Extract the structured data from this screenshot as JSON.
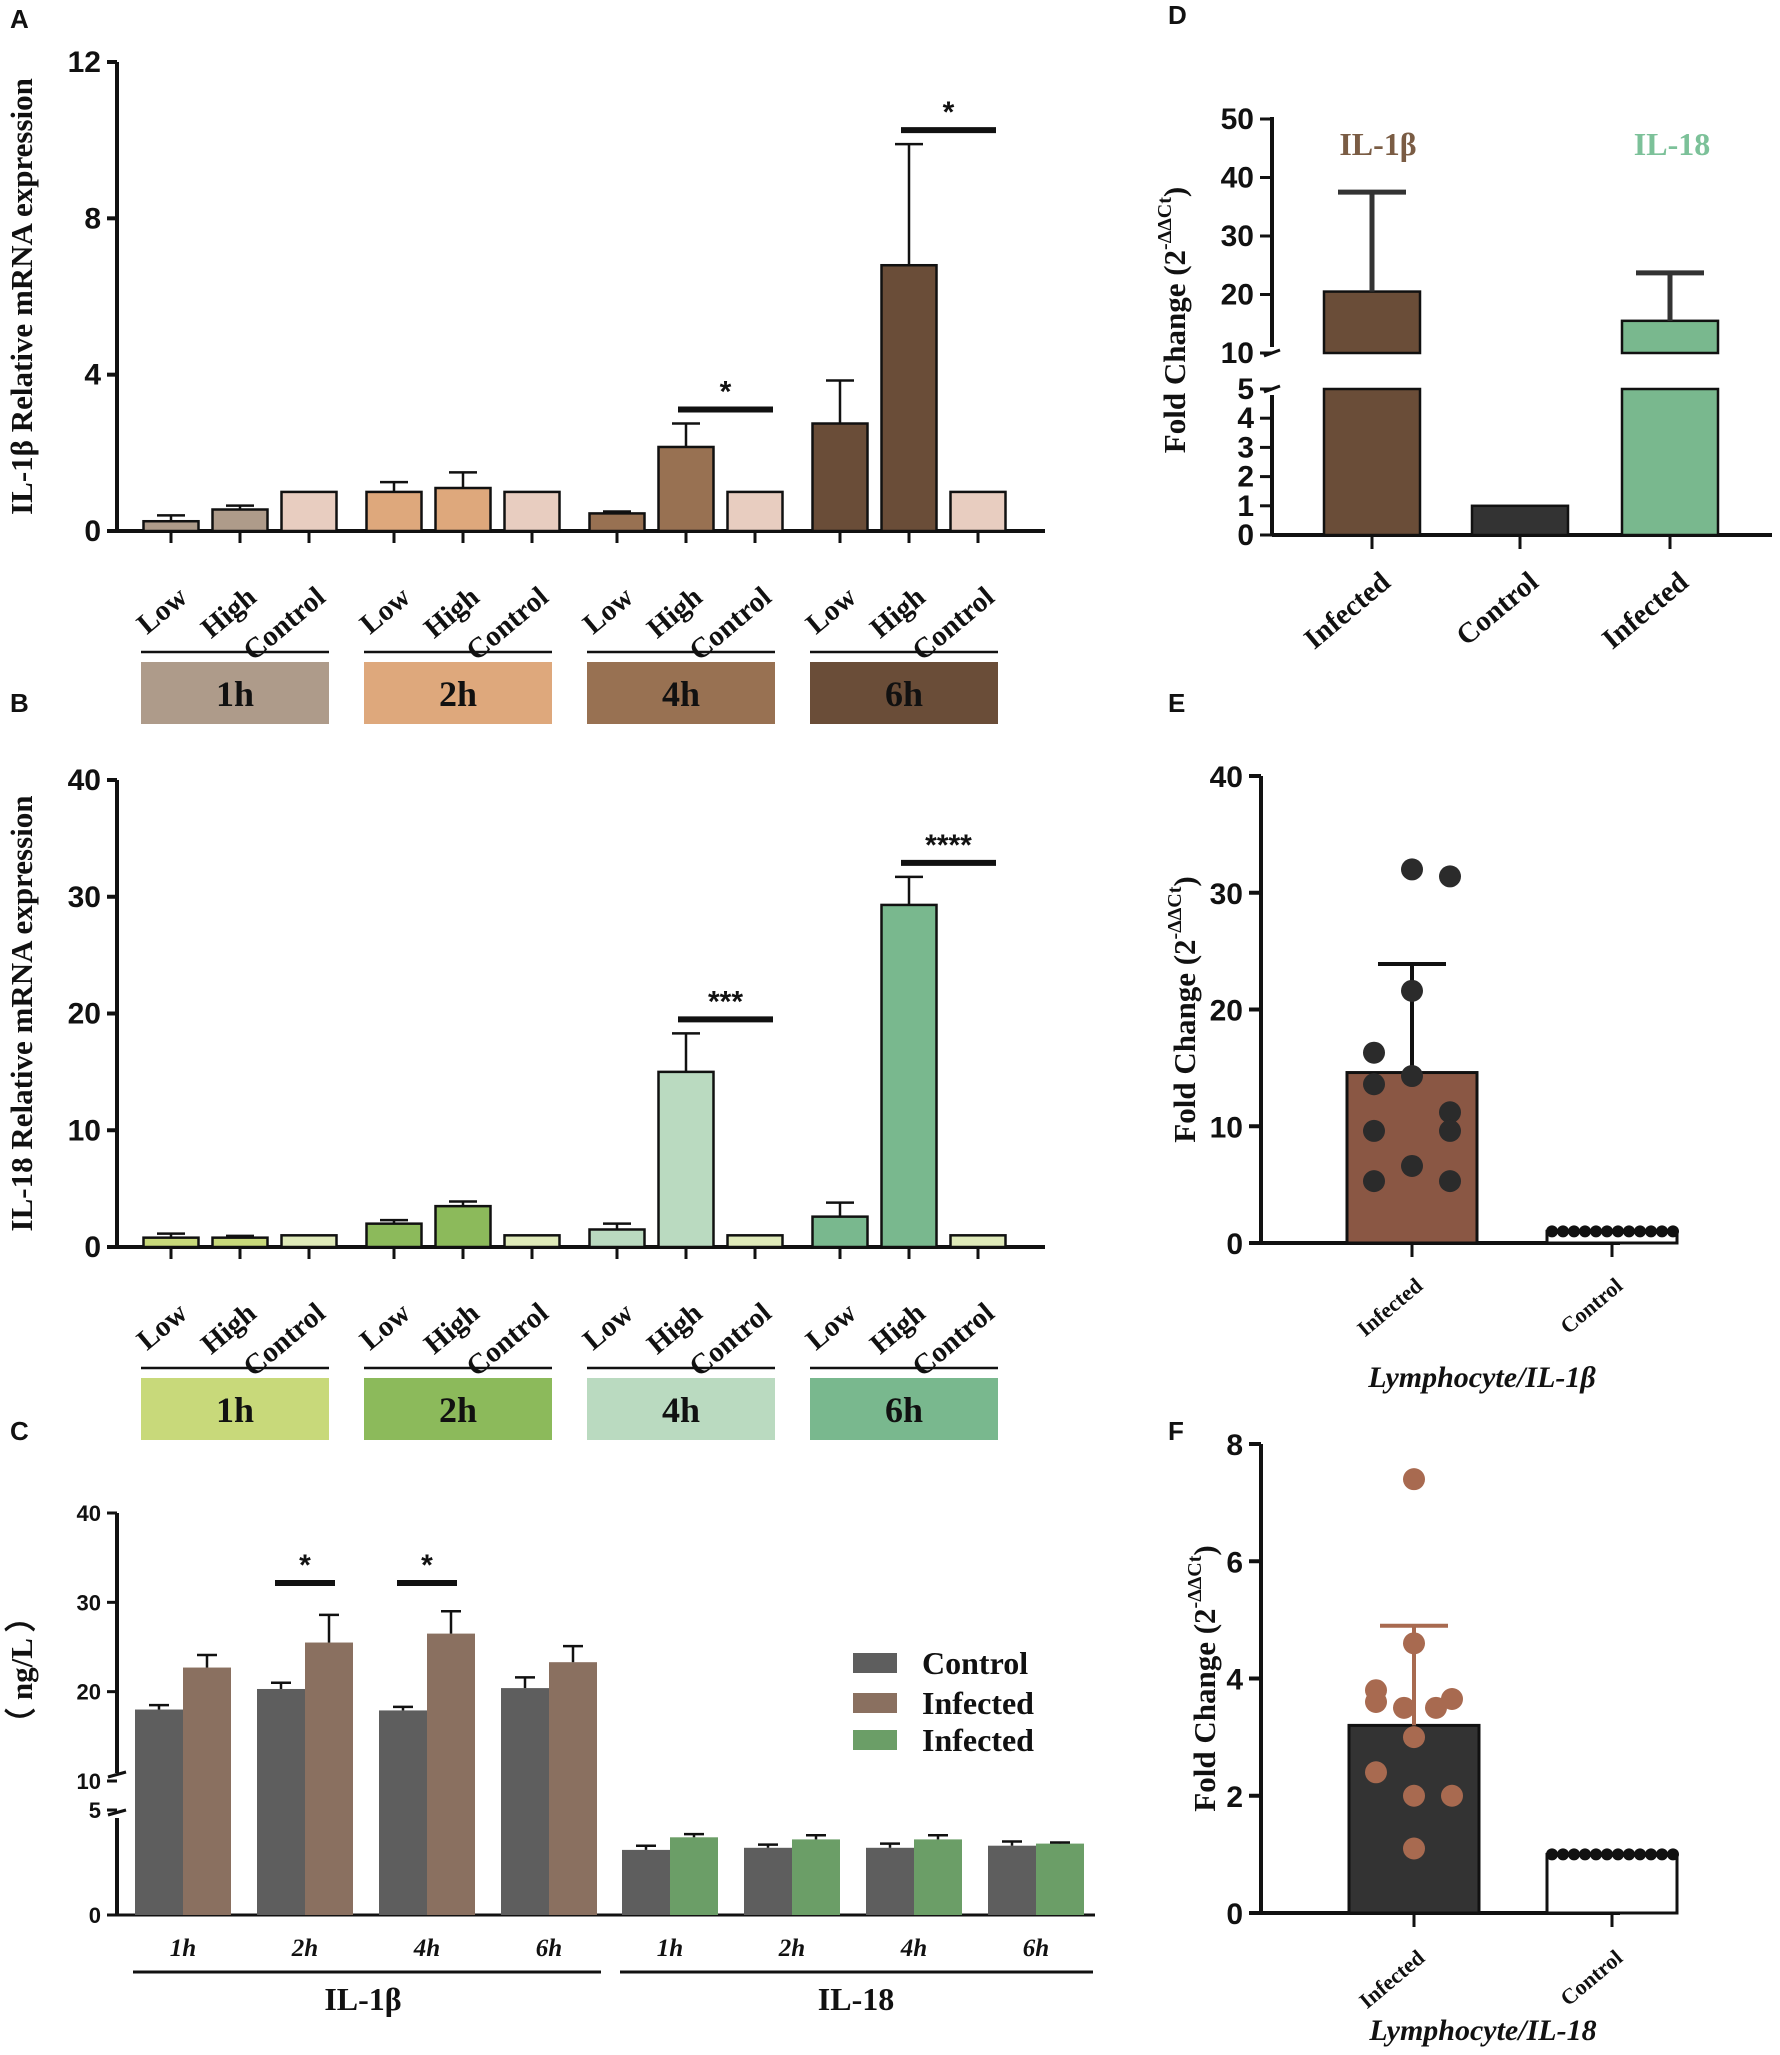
{
  "figure": {
    "panels": {
      "A": "A",
      "B": "B",
      "C": "C",
      "D": "D",
      "E": "E",
      "F": "F"
    }
  },
  "colors": {
    "il1b_1h": "#ae9b8a",
    "il1b_2h": "#dea87c",
    "il1b_4h": "#987152",
    "il1b_6h": "#6a4d38",
    "il1b_ctrl": "#e8cdc0",
    "il18_1h": "#c8d97a",
    "il18_2h": "#8cba5b",
    "il18_4h": "#badac0",
    "il18_6h": "#79b88e",
    "il18_ctrl": "#dfeab9",
    "control_gray": "#5e5e5e",
    "infected_brown": "#8a7060",
    "infected_green": "#6b9e67",
    "d_il1b": "#6a4d38",
    "d_control": "#333333",
    "d_il18": "#79b88e",
    "d_il1b_text": "#7a5c44",
    "d_il18_text": "#7cc199",
    "e_bar": "#8a5744",
    "f_bar": "#333333",
    "f_dot": "#a86a50"
  },
  "chart_data": [
    {
      "id": "A",
      "type": "bar",
      "ylabel": "IL-1β Relative mRNA expression",
      "ylim": [
        0,
        12
      ],
      "yticks": [
        "0",
        "4",
        "8",
        "12"
      ],
      "categories": [
        "Low",
        "High",
        "Control",
        "Low",
        "High",
        "Control",
        "Low",
        "High",
        "Control",
        "Low",
        "High",
        "Control"
      ],
      "groups": [
        "1h",
        "2h",
        "4h",
        "6h"
      ],
      "values": [
        0.25,
        0.55,
        1.0,
        1.0,
        1.1,
        1.0,
        0.45,
        2.15,
        1.0,
        2.75,
        6.8,
        1.0
      ],
      "errors": [
        0.15,
        0.1,
        0.0,
        0.25,
        0.4,
        0.0,
        0.05,
        0.6,
        0.0,
        1.1,
        3.1,
        0.0
      ],
      "significance": [
        {
          "label": "*",
          "from": 7,
          "to": 8
        },
        {
          "label": "*",
          "from": 10,
          "to": 11
        }
      ]
    },
    {
      "id": "B",
      "type": "bar",
      "ylabel": "IL-18 Relative mRNA expression",
      "ylim": [
        0,
        40
      ],
      "yticks": [
        "0",
        "10",
        "20",
        "30",
        "40"
      ],
      "categories": [
        "Low",
        "High",
        "Control",
        "Low",
        "High",
        "Control",
        "Low",
        "High",
        "Control",
        "Low",
        "High",
        "Control"
      ],
      "groups": [
        "1h",
        "2h",
        "4h",
        "6h"
      ],
      "values": [
        0.8,
        0.8,
        1.0,
        2.0,
        3.5,
        1.0,
        1.5,
        15.0,
        1.0,
        2.6,
        29.3,
        1.0
      ],
      "errors": [
        0.35,
        0.15,
        0.0,
        0.3,
        0.4,
        0.0,
        0.5,
        3.3,
        0.0,
        1.2,
        2.4,
        0.0
      ],
      "significance": [
        {
          "label": "***",
          "from": 7,
          "to": 8
        },
        {
          "label": "****",
          "from": 10,
          "to": 11
        }
      ]
    },
    {
      "id": "C",
      "type": "bar",
      "ylabel": "（ ng/L ）",
      "yticks": [
        "0",
        "5",
        "10",
        "20",
        "30",
        "40"
      ],
      "axis_break": [
        5,
        10
      ],
      "categories": [
        "1h",
        "2h",
        "4h",
        "6h",
        "1h",
        "2h",
        "4h",
        "6h"
      ],
      "groups": [
        "IL-1β",
        "IL-18"
      ],
      "series": [
        {
          "name": "Control",
          "values": [
            18.0,
            20.3,
            17.9,
            20.4,
            3.1,
            3.2,
            3.2,
            3.3
          ],
          "errors": [
            0.5,
            0.7,
            0.4,
            1.2,
            0.2,
            0.15,
            0.2,
            0.2
          ]
        },
        {
          "name": "Infected",
          "values": [
            22.7,
            25.5,
            26.5,
            23.3,
            3.7,
            3.6,
            3.6,
            3.4
          ],
          "errors": [
            1.4,
            3.1,
            2.5,
            1.8,
            0.15,
            0.2,
            0.2,
            0.05
          ]
        }
      ],
      "legend": [
        "Control",
        "Infected",
        "Infected"
      ],
      "significance": [
        {
          "label": "*",
          "index": 1
        },
        {
          "label": "*",
          "index": 2
        }
      ]
    },
    {
      "id": "D",
      "type": "bar",
      "ylabel": "Fold Change (2-ΔΔCt)",
      "yticks": [
        "0",
        "1",
        "2",
        "3",
        "4",
        "5",
        "10",
        "20",
        "30",
        "40",
        "50"
      ],
      "axis_break": [
        5,
        10
      ],
      "categories": [
        "Infected",
        "Control",
        "Infected"
      ],
      "series_labels": [
        "IL-1β",
        "IL-18"
      ],
      "values": [
        20.5,
        1.0,
        15.5
      ],
      "errors": [
        17.0,
        0.0,
        8.2
      ]
    },
    {
      "id": "E",
      "type": "scatter",
      "title": "Lymphocyte/IL-1β",
      "ylabel": "Fold Change (2-ΔΔCt)",
      "ylim": [
        0,
        40
      ],
      "yticks": [
        "0",
        "10",
        "20",
        "30",
        "40"
      ],
      "categories": [
        "Infected",
        "Control"
      ],
      "means": [
        14.6,
        1.0
      ],
      "errors": [
        9.3,
        0.0
      ],
      "points": [
        [
          32.0,
          31.4,
          21.6,
          16.3,
          14.3,
          13.6,
          11.2,
          9.6,
          9.6,
          6.6,
          5.3,
          5.3
        ],
        [
          1.0,
          1.0,
          1.0,
          1.0,
          1.0,
          1.0,
          1.0,
          1.0,
          1.0,
          1.0,
          1.0,
          1.0
        ]
      ]
    },
    {
      "id": "F",
      "type": "scatter",
      "title": "Lymphocyte/IL-18",
      "ylabel": "Fold Change (2-ΔΔCt)",
      "ylim": [
        0,
        8
      ],
      "yticks": [
        "0",
        "2",
        "4",
        "6",
        "8"
      ],
      "categories": [
        "Infected",
        "Control"
      ],
      "means": [
        3.2,
        1.0
      ],
      "errors": [
        1.7,
        0.0
      ],
      "points": [
        [
          7.4,
          4.6,
          3.8,
          3.65,
          3.6,
          3.5,
          3.5,
          3.0,
          2.4,
          2.0,
          2.0,
          1.1
        ],
        [
          1.0,
          1.0,
          1.0,
          1.0,
          1.0,
          1.0,
          1.0,
          1.0,
          1.0,
          1.0,
          1.0,
          1.0
        ]
      ]
    }
  ]
}
